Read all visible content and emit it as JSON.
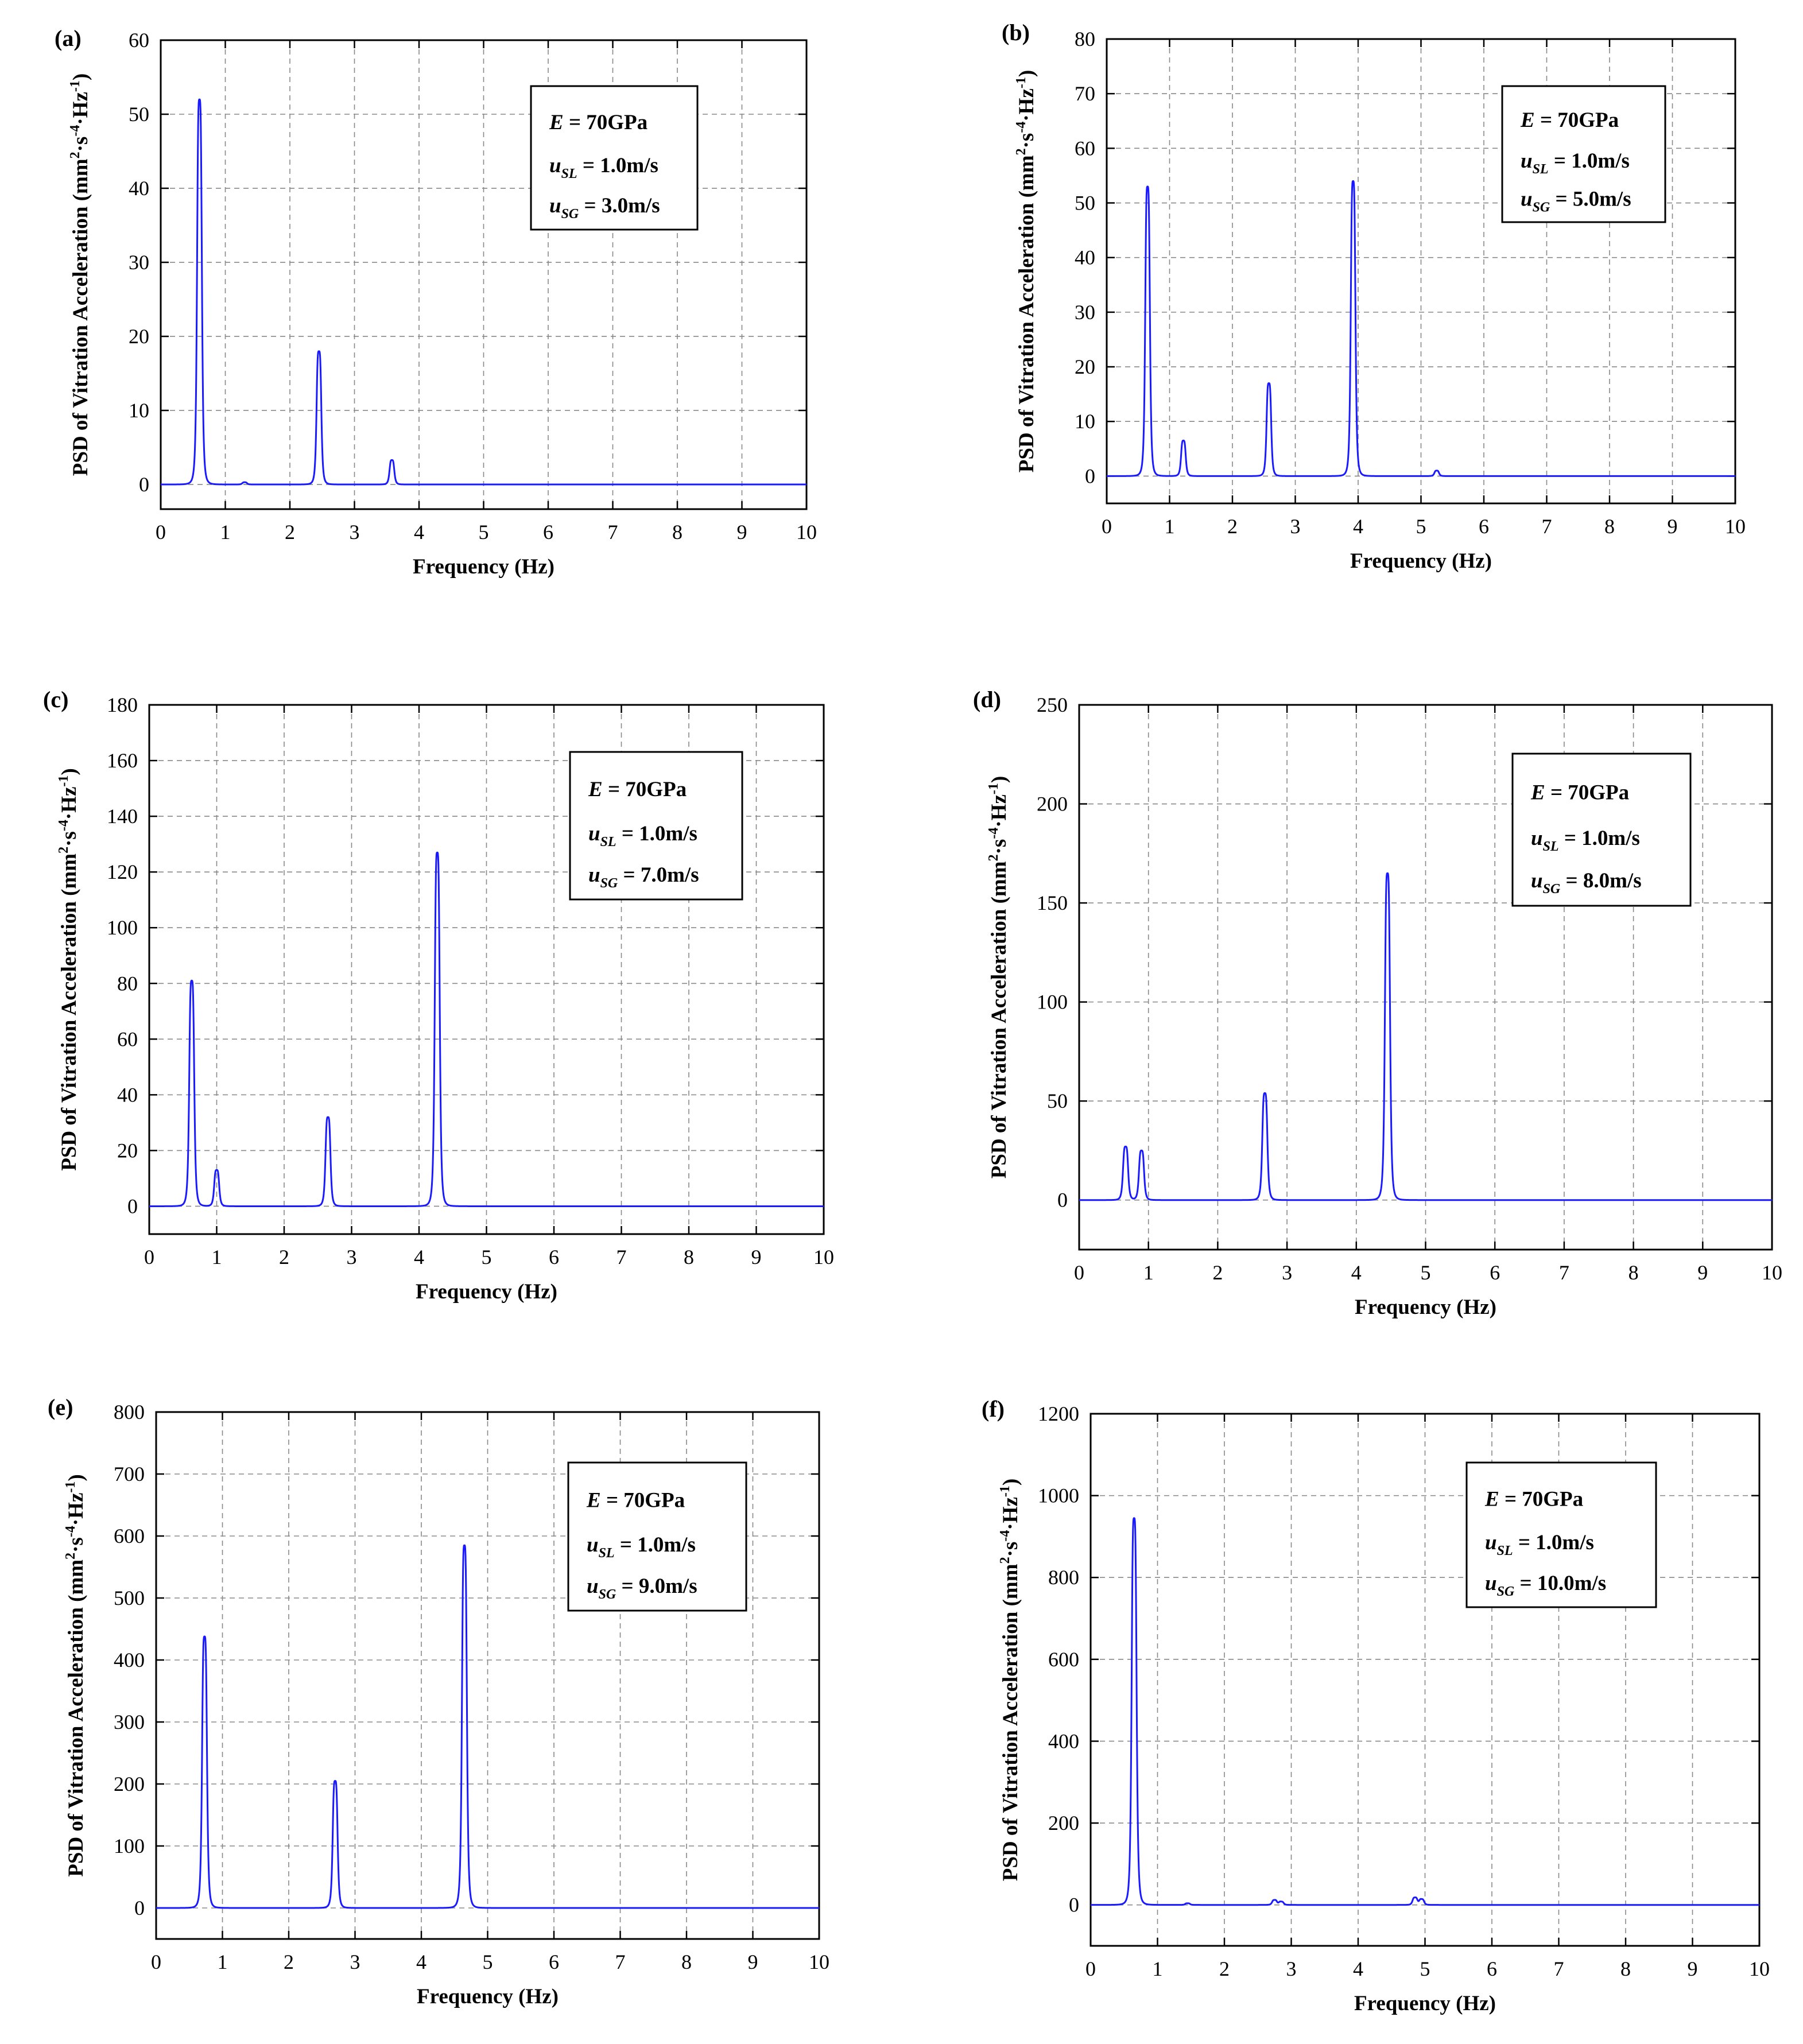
{
  "figure": {
    "series_color": "#1a1aff",
    "grid_color": "#888888",
    "axis_color": "#000000"
  },
  "chart_data": [
    {
      "panel": "(a)",
      "type": "line",
      "title": "",
      "xlabel": "Frequency (Hz)",
      "ylabel": {
        "base": "PSD of Vitration Acceleration (mm",
        "sup1": "2",
        "mid1": "·s",
        "sup2": "-4",
        "mid2": "·Hz",
        "sup3": "-1",
        "end": ")"
      },
      "xlim": [
        0,
        10
      ],
      "ylim": [
        -3.33,
        60
      ],
      "xticks": [
        0,
        1,
        2,
        3,
        4,
        5,
        6,
        7,
        8,
        9,
        10
      ],
      "yticks": [
        0,
        10,
        20,
        30,
        40,
        50,
        60
      ],
      "grid": true,
      "legend": {
        "E": "E = 70GPa",
        "uSL": "u",
        "uSL_sub": "SL",
        "uSL_val": " = 1.0m/s",
        "uSG": "u",
        "uSG_sub": "SG",
        "uSG_val": " = 3.0m/s"
      },
      "peaks": [
        {
          "x": 0.6,
          "y": 52
        },
        {
          "x": 1.3,
          "y": 0.3
        },
        {
          "x": 2.45,
          "y": 18
        },
        {
          "x": 3.58,
          "y": 3.3
        }
      ]
    },
    {
      "panel": "(b)",
      "type": "line",
      "title": "",
      "xlabel": "Frequency (Hz)",
      "ylabel": {
        "base": "PSD of Vitration Acceleration (mm",
        "sup1": "2",
        "mid1": "·s",
        "sup2": "-4",
        "mid2": "·Hz",
        "sup3": "-1",
        "end": ")"
      },
      "xlim": [
        0,
        10
      ],
      "ylim": [
        -5,
        80
      ],
      "xticks": [
        0,
        1,
        2,
        3,
        4,
        5,
        6,
        7,
        8,
        9,
        10
      ],
      "yticks": [
        0,
        10,
        20,
        30,
        40,
        50,
        60,
        70,
        80
      ],
      "grid": true,
      "legend": {
        "E": "E = 70GPa",
        "uSL": "u",
        "uSL_sub": "SL",
        "uSL_val": " = 1.0m/s",
        "uSG": "u",
        "uSG_sub": "SG",
        "uSG_val": " = 5.0m/s"
      },
      "peaks": [
        {
          "x": 0.65,
          "y": 53
        },
        {
          "x": 1.22,
          "y": 6.5
        },
        {
          "x": 2.58,
          "y": 17
        },
        {
          "x": 3.92,
          "y": 54
        },
        {
          "x": 5.25,
          "y": 1
        }
      ]
    },
    {
      "panel": "(c)",
      "type": "line",
      "title": "",
      "xlabel": "Frequency (Hz)",
      "ylabel": {
        "base": "PSD of Vitration Acceleration (mm",
        "sup1": "2",
        "mid1": "·s",
        "sup2": "-4",
        "mid2": "·Hz",
        "sup3": "-1",
        "end": ")"
      },
      "xlim": [
        0,
        10
      ],
      "ylim": [
        -10,
        180
      ],
      "xticks": [
        0,
        1,
        2,
        3,
        4,
        5,
        6,
        7,
        8,
        9,
        10
      ],
      "yticks": [
        0,
        20,
        40,
        60,
        80,
        100,
        120,
        140,
        160,
        180
      ],
      "grid": true,
      "legend": {
        "E": "E = 70GPa",
        "uSL": "u",
        "uSL_sub": "SL",
        "uSL_val": " = 1.0m/s",
        "uSG": "u",
        "uSG_sub": "SG",
        "uSG_val": " = 7.0m/s"
      },
      "peaks": [
        {
          "x": 0.63,
          "y": 81
        },
        {
          "x": 1.0,
          "y": 13
        },
        {
          "x": 2.65,
          "y": 32
        },
        {
          "x": 4.27,
          "y": 127
        }
      ]
    },
    {
      "panel": "(d)",
      "type": "line",
      "title": "",
      "xlabel": "Frequency (Hz)",
      "ylabel": {
        "base": "PSD of Vitration Acceleration (mm",
        "sup1": "2",
        "mid1": "·s",
        "sup2": "-4",
        "mid2": "·Hz",
        "sup3": "-1",
        "end": ")"
      },
      "xlim": [
        0,
        10
      ],
      "ylim": [
        -25,
        250
      ],
      "xticks": [
        0,
        1,
        2,
        3,
        4,
        5,
        6,
        7,
        8,
        9,
        10
      ],
      "yticks": [
        0,
        50,
        100,
        150,
        200,
        250
      ],
      "grid": true,
      "legend": {
        "E": "E = 70GPa",
        "uSL": "u",
        "uSL_sub": "SL",
        "uSL_val": " = 1.0m/s",
        "uSG": "u",
        "uSG_sub": "SG",
        "uSG_val": " = 8.0m/s"
      },
      "peaks": [
        {
          "x": 0.67,
          "y": 27
        },
        {
          "x": 0.9,
          "y": 25
        },
        {
          "x": 2.68,
          "y": 54
        },
        {
          "x": 4.45,
          "y": 165
        }
      ]
    },
    {
      "panel": "(e)",
      "type": "line",
      "title": "",
      "xlabel": "Frequency (Hz)",
      "ylabel": {
        "base": "PSD of Vitration Acceleration (mm",
        "sup1": "2",
        "mid1": "·s",
        "sup2": "-4",
        "mid2": "·Hz",
        "sup3": "-1",
        "end": ")"
      },
      "xlim": [
        0,
        10
      ],
      "ylim": [
        -50,
        800
      ],
      "xticks": [
        0,
        1,
        2,
        3,
        4,
        5,
        6,
        7,
        8,
        9,
        10
      ],
      "yticks": [
        0,
        100,
        200,
        300,
        400,
        500,
        600,
        700,
        800
      ],
      "grid": true,
      "legend": {
        "E": "E = 70GPa",
        "uSL": "u",
        "uSL_sub": "SL",
        "uSL_val": " = 1.0m/s",
        "uSG": "u",
        "uSG_sub": "SG",
        "uSG_val": " = 9.0m/s"
      },
      "peaks": [
        {
          "x": 0.73,
          "y": 438
        },
        {
          "x": 2.7,
          "y": 205
        },
        {
          "x": 4.65,
          "y": 585
        }
      ]
    },
    {
      "panel": "(f)",
      "type": "line",
      "title": "",
      "xlabel": "Frequency (Hz)",
      "ylabel": {
        "base": "PSD of Vitration Acceleration (mm",
        "sup1": "2",
        "mid1": "·s",
        "sup2": "-4",
        "mid2": "·Hz",
        "sup3": "-1",
        "end": ")"
      },
      "xlim": [
        0,
        10
      ],
      "ylim": [
        -100,
        1200
      ],
      "xticks": [
        0,
        1,
        2,
        3,
        4,
        5,
        6,
        7,
        8,
        9,
        10
      ],
      "yticks": [
        0,
        200,
        400,
        600,
        800,
        1000,
        1200
      ],
      "grid": true,
      "legend": {
        "E": "E = 70GPa",
        "uSL": "u",
        "uSL_sub": "SL",
        "uSL_val": " = 1.0m/s",
        "uSG": "u",
        "uSG_sub": "SG",
        "uSG_val": " = 10.0m/s"
      },
      "peaks": [
        {
          "x": 0.65,
          "y": 945
        },
        {
          "x": 1.45,
          "y": 4
        },
        {
          "x": 2.75,
          "y": 12
        },
        {
          "x": 2.85,
          "y": 8
        },
        {
          "x": 4.85,
          "y": 18
        },
        {
          "x": 4.95,
          "y": 14
        }
      ]
    }
  ]
}
